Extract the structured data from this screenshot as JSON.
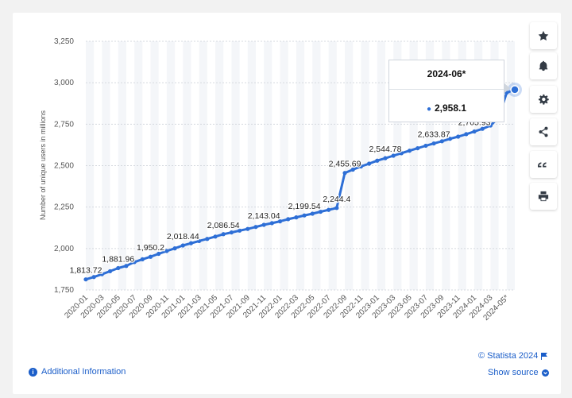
{
  "chart_data": {
    "type": "line",
    "ylabel": "Number of unique users in millions",
    "ylim": [
      1750,
      3250
    ],
    "yticks": [
      1750,
      2000,
      2250,
      2500,
      2750,
      3000,
      3250
    ],
    "ytick_labels": [
      "1,750",
      "2,000",
      "2,250",
      "2,500",
      "2,750",
      "3,000",
      "3,250"
    ],
    "xtick_labels": [
      "2020-01",
      "2020-03",
      "2020-05",
      "2020-07",
      "2020-09",
      "2020-11",
      "2021-01",
      "2021-03",
      "2021-05",
      "2021-07",
      "2021-09",
      "2021-11",
      "2022-01",
      "2022-03",
      "2022-05",
      "2022-07",
      "2022-09",
      "2022-11",
      "2023-01",
      "2023-03",
      "2023-05",
      "2023-07",
      "2023-09",
      "2023-11",
      "2024-01",
      "2024-03",
      "2024-05*"
    ],
    "x": [
      "2020-01",
      "2020-02",
      "2020-03",
      "2020-04",
      "2020-05",
      "2020-06",
      "2020-07",
      "2020-08",
      "2020-09",
      "2020-10",
      "2020-11",
      "2020-12",
      "2021-01",
      "2021-02",
      "2021-03",
      "2021-04",
      "2021-05",
      "2021-06",
      "2021-07",
      "2021-08",
      "2021-09",
      "2021-10",
      "2021-11",
      "2021-12",
      "2022-01",
      "2022-02",
      "2022-03",
      "2022-04",
      "2022-05",
      "2022-06",
      "2022-07",
      "2022-08",
      "2022-09",
      "2022-10",
      "2022-11",
      "2022-12",
      "2023-01",
      "2023-02",
      "2023-03",
      "2023-04",
      "2023-05",
      "2023-06",
      "2023-07",
      "2023-08",
      "2023-09",
      "2023-10",
      "2023-11",
      "2023-12",
      "2024-01",
      "2024-02",
      "2024-03",
      "2024-04",
      "2024-05*",
      "2024-06*"
    ],
    "values": [
      1813.72,
      1828,
      1845,
      1863,
      1881.96,
      1895,
      1918,
      1935,
      1950.2,
      1968,
      1985,
      2001,
      2018.44,
      2032,
      2045,
      2058,
      2072,
      2086.54,
      2097,
      2108,
      2118,
      2130,
      2143.04,
      2153,
      2164,
      2177,
      2188,
      2199.54,
      2210,
      2222,
      2233,
      2244.4,
      2455.69,
      2476,
      2495,
      2512,
      2530,
      2544.78,
      2560,
      2575,
      2590,
      2605,
      2620,
      2633.87,
      2647,
      2662,
      2675,
      2690,
      2705.93,
      2722,
      2742,
      2790,
      2940,
      2958.1
    ],
    "data_labels": [
      {
        "index": 0,
        "text": "1,813.72"
      },
      {
        "index": 4,
        "text": "1,881.96"
      },
      {
        "index": 8,
        "text": "1,950.2"
      },
      {
        "index": 12,
        "text": "2,018.44"
      },
      {
        "index": 17,
        "text": "2,086.54"
      },
      {
        "index": 22,
        "text": "2,143.04"
      },
      {
        "index": 27,
        "text": "2,199.54"
      },
      {
        "index": 31,
        "text": "2,244.4"
      },
      {
        "index": 32,
        "text": "2,455.69"
      },
      {
        "index": 37,
        "text": "2,544.78"
      },
      {
        "index": 43,
        "text": "2,633.87"
      },
      {
        "index": 48,
        "text": "2,705.93"
      }
    ],
    "grid": true,
    "series_color": "#2e6fd6"
  },
  "tooltip": {
    "title": "2024-06*",
    "value": "2,958.1"
  },
  "footer": {
    "credit": "© Statista 2024",
    "show_source": "Show source",
    "additional_info": "Additional Information"
  },
  "sidebar_icons": [
    "star-icon",
    "bell-icon",
    "gear-icon",
    "share-icon",
    "quote-icon",
    "print-icon"
  ]
}
